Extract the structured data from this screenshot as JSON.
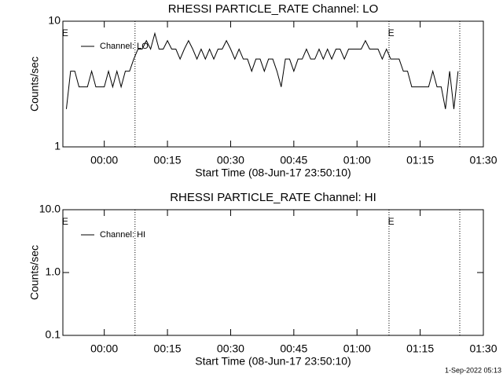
{
  "chart_data": [
    {
      "type": "line",
      "title": "RHESSI PARTICLE_RATE Channel: LO",
      "xlabel": "Start Time (08-Jun-17 23:50:10)",
      "ylabel": "Counts/sec",
      "yscale": "log",
      "ylim": [
        1,
        10
      ],
      "yticks": [
        1,
        10
      ],
      "xlim": [
        -9.83,
        90
      ],
      "xticks": [
        {
          "value": 0,
          "label": "00:00"
        },
        {
          "value": 15,
          "label": "00:15"
        },
        {
          "value": 30,
          "label": "00:30"
        },
        {
          "value": 45,
          "label": "00:45"
        },
        {
          "value": 60,
          "label": "01:00"
        },
        {
          "value": 75,
          "label": "01:15"
        },
        {
          "value": 90,
          "label": "01:30"
        }
      ],
      "vlines": [
        7.3,
        67.6,
        84.4
      ],
      "annotations": [
        {
          "text": "E",
          "x": -9.3
        },
        {
          "text": "E",
          "x": 68.1
        }
      ],
      "legend": "upper left",
      "series": [
        {
          "name": "Channel: LO",
          "color": "#000000",
          "x": [
            -9,
            -8,
            -7,
            -6,
            -5,
            -4,
            -3,
            -2,
            -1,
            0,
            1,
            2,
            3,
            4,
            5,
            6,
            7,
            8,
            9,
            10,
            11,
            12,
            13,
            14,
            15,
            16,
            17,
            18,
            19,
            20,
            21,
            22,
            23,
            24,
            25,
            26,
            27,
            28,
            29,
            30,
            31,
            32,
            33,
            34,
            35,
            36,
            37,
            38,
            39,
            40,
            41,
            42,
            43,
            44,
            45,
            46,
            47,
            48,
            49,
            50,
            51,
            52,
            53,
            54,
            55,
            56,
            57,
            58,
            59,
            60,
            61,
            62,
            63,
            64,
            65,
            66,
            67,
            68,
            69,
            70,
            71,
            72,
            73,
            74,
            75,
            76,
            77,
            78,
            79,
            80,
            81,
            82,
            83,
            84
          ],
          "values": [
            2,
            4,
            4,
            3,
            3,
            3,
            4,
            3,
            3,
            3,
            4,
            3,
            4,
            3,
            4,
            4,
            5,
            6,
            6,
            7,
            6,
            8,
            6,
            6,
            7,
            6,
            6,
            5,
            6,
            7,
            6,
            5,
            6,
            5,
            6,
            5,
            6,
            6,
            7,
            6,
            5,
            6,
            5,
            5,
            4,
            5,
            5,
            4,
            5,
            5,
            4,
            3,
            5,
            5,
            4,
            5,
            5,
            6,
            5,
            5,
            6,
            5,
            6,
            5,
            6,
            6,
            5,
            6,
            6,
            6,
            6,
            7,
            6,
            6,
            6,
            5,
            6,
            5,
            5,
            5,
            4,
            4,
            3,
            3,
            3,
            3,
            3,
            4,
            3,
            3,
            2,
            4,
            2,
            4
          ]
        }
      ]
    },
    {
      "type": "line",
      "title": "RHESSI PARTICLE_RATE Channel: HI",
      "xlabel": "Start Time (08-Jun-17 23:50:10)",
      "ylabel": "Counts/sec",
      "yscale": "log",
      "ylim": [
        0.1,
        10
      ],
      "yticks": [
        0.1,
        {
          "value": 1,
          "label": "1.0"
        },
        {
          "value": 10,
          "label": "10.0"
        }
      ],
      "xlim": [
        -9.83,
        90
      ],
      "xticks": [
        {
          "value": 0,
          "label": "00:00"
        },
        {
          "value": 15,
          "label": "00:15"
        },
        {
          "value": 30,
          "label": "00:30"
        },
        {
          "value": 45,
          "label": "00:45"
        },
        {
          "value": 60,
          "label": "01:00"
        },
        {
          "value": 75,
          "label": "01:15"
        },
        {
          "value": 90,
          "label": "01:30"
        }
      ],
      "vlines": [
        7.3,
        67.6,
        84.4
      ],
      "annotations": [
        {
          "text": "E",
          "x": -9.3
        },
        {
          "text": "E",
          "x": 68.1
        }
      ],
      "legend": "upper left",
      "series": [
        {
          "name": "Channel: HI",
          "color": "#000000",
          "x": [],
          "values": []
        }
      ]
    }
  ],
  "footer": "1-Sep-2022 05:13"
}
